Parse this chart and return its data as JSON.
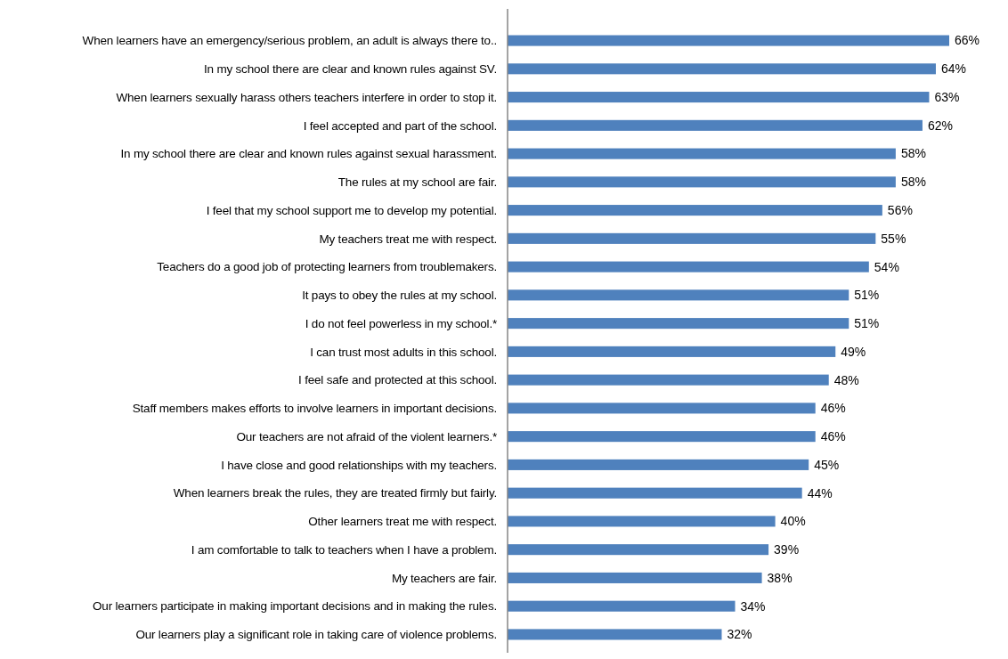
{
  "chart_data": {
    "type": "bar",
    "orientation": "horizontal",
    "categories": [
      "When learners have an emergency/serious problem, an adult is always there to..",
      "In my school there are clear and known rules against SV.",
      "When learners sexually harass others teachers interfere in order to stop it.",
      "I feel accepted and part of the school.",
      "In my school there are clear and known rules against sexual harassment.",
      "The rules at my school are fair.",
      "I feel that my school support me to develop my potential.",
      "My teachers treat me with respect.",
      "Teachers do a good job of protecting learners from troublemakers.",
      "It pays to obey the rules at my school.",
      "I do not feel powerless in my school.*",
      "I can trust most adults in this school.",
      "I feel safe and protected at this school.",
      "Staff members makes efforts to involve learners in important decisions.",
      "Our teachers are not afraid of the violent learners.*",
      "I have close and good relationships with my teachers.",
      "When learners break the rules, they are treated firmly but fairly.",
      "Other learners  treat me with respect.",
      "I am comfortable to talk to teachers when I have a problem.",
      "My teachers are fair.",
      "Our learners participate in making important decisions and in making the rules.",
      "Our learners play a significant role in taking care of violence problems."
    ],
    "values": [
      66,
      64,
      63,
      62,
      58,
      58,
      56,
      55,
      54,
      51,
      51,
      49,
      48,
      46,
      46,
      45,
      44,
      40,
      39,
      38,
      34,
      32
    ],
    "value_labels": [
      "66%",
      "64%",
      "63%",
      "62%",
      "58%",
      "58%",
      "56%",
      "55%",
      "54%",
      "51%",
      "51%",
      "49%",
      "48%",
      "46%",
      "46%",
      "45%",
      "44%",
      "40%",
      "39%",
      "38%",
      "34%",
      "32%"
    ],
    "color": "#4f81bd",
    "tick_labels": "y"
  }
}
